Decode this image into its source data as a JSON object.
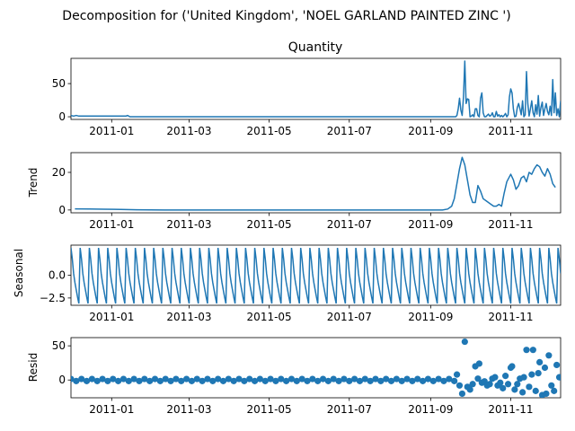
{
  "chart_data": {
    "type": "line",
    "title": "Decomposition for ('United Kingdom', 'NOEL GARLAND PAINTED ZINC ')",
    "x_range": [
      "2010-12-01",
      "2011-12-09"
    ],
    "x_ticks": [
      "2011-01",
      "2011-03",
      "2011-05",
      "2011-07",
      "2011-09",
      "2011-11"
    ],
    "line_color": "#1f77b4",
    "panels": [
      {
        "key": "observed",
        "type": "line",
        "subtitle": "Quantity",
        "ylabel": "",
        "ylim": [
          -4,
          88
        ],
        "yticks": [
          0,
          50
        ],
        "x": [
          "2010-12-01",
          "2010-12-03",
          "2010-12-05",
          "2010-12-07",
          "2010-12-09",
          "2011-01-12",
          "2011-01-13",
          "2011-01-15",
          "2011-09-20",
          "2011-09-21",
          "2011-09-22",
          "2011-09-23",
          "2011-09-24",
          "2011-09-25",
          "2011-09-26",
          "2011-09-27",
          "2011-09-28",
          "2011-09-29",
          "2011-09-30",
          "2011-10-01",
          "2011-10-02",
          "2011-10-03",
          "2011-10-04",
          "2011-10-05",
          "2011-10-06",
          "2011-10-07",
          "2011-10-08",
          "2011-10-09",
          "2011-10-10",
          "2011-10-11",
          "2011-10-12",
          "2011-10-13",
          "2011-10-14",
          "2011-10-15",
          "2011-10-16",
          "2011-10-17",
          "2011-10-18",
          "2011-10-19",
          "2011-10-20",
          "2011-10-21",
          "2011-10-22",
          "2011-10-23",
          "2011-10-24",
          "2011-10-25",
          "2011-10-26",
          "2011-10-27",
          "2011-10-28",
          "2011-10-29",
          "2011-10-30",
          "2011-10-31",
          "2011-11-01",
          "2011-11-02",
          "2011-11-03",
          "2011-11-04",
          "2011-11-05",
          "2011-11-06",
          "2011-11-07",
          "2011-11-08",
          "2011-11-09",
          "2011-11-10",
          "2011-11-11",
          "2011-11-12",
          "2011-11-13",
          "2011-11-14",
          "2011-11-15",
          "2011-11-16",
          "2011-11-17",
          "2011-11-18",
          "2011-11-19",
          "2011-11-20",
          "2011-11-21",
          "2011-11-22",
          "2011-11-23",
          "2011-11-24",
          "2011-11-25",
          "2011-11-26",
          "2011-11-27",
          "2011-11-28",
          "2011-11-29",
          "2011-11-30",
          "2011-12-01",
          "2011-12-02",
          "2011-12-03",
          "2011-12-04",
          "2011-12-05",
          "2011-12-06",
          "2011-12-07",
          "2011-12-08",
          "2011-12-09"
        ],
        "y": [
          2,
          1,
          2,
          1,
          1,
          1,
          2,
          0,
          0,
          2,
          12,
          28,
          10,
          2,
          30,
          84,
          20,
          27,
          26,
          0,
          1,
          3,
          0,
          12,
          12,
          2,
          0,
          28,
          36,
          6,
          0,
          0,
          2,
          4,
          1,
          2,
          6,
          0,
          0,
          8,
          1,
          3,
          0,
          2,
          0,
          2,
          5,
          0,
          3,
          30,
          42,
          36,
          12,
          0,
          1,
          14,
          20,
          12,
          3,
          24,
          0,
          3,
          68,
          20,
          1,
          12,
          24,
          6,
          0,
          18,
          4,
          32,
          1,
          14,
          22,
          2,
          12,
          20,
          8,
          3,
          16,
          2,
          56,
          6,
          36,
          2,
          12,
          0,
          24
        ]
      },
      {
        "key": "trend",
        "type": "line",
        "subtitle": "",
        "ylabel": "Trend",
        "ylim": [
          -1.5,
          30.5
        ],
        "yticks": [
          0,
          20
        ],
        "x": [
          "2010-12-04",
          "2010-12-15",
          "2010-12-26",
          "2011-01-08",
          "2011-01-20",
          "2011-02-10",
          "2011-09-10",
          "2011-09-14",
          "2011-09-17",
          "2011-09-19",
          "2011-09-21",
          "2011-09-23",
          "2011-09-25",
          "2011-09-27",
          "2011-09-29",
          "2011-10-01",
          "2011-10-03",
          "2011-10-05",
          "2011-10-07",
          "2011-10-09",
          "2011-10-11",
          "2011-10-13",
          "2011-10-15",
          "2011-10-17",
          "2011-10-19",
          "2011-10-21",
          "2011-10-23",
          "2011-10-25",
          "2011-10-27",
          "2011-10-29",
          "2011-11-01",
          "2011-11-03",
          "2011-11-05",
          "2011-11-07",
          "2011-11-09",
          "2011-11-11",
          "2011-11-13",
          "2011-11-15",
          "2011-11-17",
          "2011-11-19",
          "2011-11-21",
          "2011-11-23",
          "2011-11-25",
          "2011-11-27",
          "2011-11-29",
          "2011-12-01",
          "2011-12-03",
          "2011-12-05"
        ],
        "y": [
          0.6,
          0.5,
          0.4,
          0.3,
          0.1,
          0,
          0,
          0.5,
          2,
          6,
          14,
          22,
          28,
          24,
          16,
          8,
          4,
          4,
          13,
          10,
          6,
          5,
          4,
          3,
          2,
          2,
          3,
          2,
          9,
          15,
          19,
          16,
          11,
          13,
          17,
          18,
          15,
          20,
          19,
          22,
          24,
          23,
          20,
          18,
          22,
          19,
          14,
          12
        ]
      },
      {
        "key": "seasonal",
        "type": "line",
        "subtitle": "",
        "ylabel": "Seasonal",
        "ylim": [
          -3.3,
          3.3
        ],
        "yticks": [
          0.0,
          -2.5
        ],
        "ytick_labels": [
          "0.0",
          "−2.5"
        ],
        "period_days": 7,
        "start": "2010-12-01",
        "end": "2011-12-09",
        "weekly_pattern": [
          3.0,
          1.8,
          0.2,
          -0.8,
          -1.6,
          -2.4,
          -3.1
        ]
      },
      {
        "key": "resid",
        "type": "scatter",
        "subtitle": "",
        "ylabel": "Resid",
        "ylim": [
          -26,
          62
        ],
        "yticks": [
          0,
          50
        ],
        "x": [
          "2011-09-21",
          "2011-09-23",
          "2011-09-25",
          "2011-09-27",
          "2011-09-29",
          "2011-10-01",
          "2011-10-03",
          "2011-10-05",
          "2011-10-07",
          "2011-10-08",
          "2011-10-10",
          "2011-10-12",
          "2011-10-14",
          "2011-10-16",
          "2011-10-18",
          "2011-10-20",
          "2011-10-22",
          "2011-10-24",
          "2011-10-26",
          "2011-10-28",
          "2011-10-30",
          "2011-11-01",
          "2011-11-02",
          "2011-11-04",
          "2011-11-06",
          "2011-11-08",
          "2011-11-10",
          "2011-11-11",
          "2011-11-13",
          "2011-11-15",
          "2011-11-17",
          "2011-11-18",
          "2011-11-20",
          "2011-11-22",
          "2011-11-23",
          "2011-11-25",
          "2011-11-27",
          "2011-11-28",
          "2011-11-30",
          "2011-12-02",
          "2011-12-04",
          "2011-12-06",
          "2011-12-08"
        ],
        "y": [
          8,
          -8,
          -20,
          56,
          -10,
          -14,
          -6,
          20,
          2,
          24,
          -4,
          -2,
          -8,
          -6,
          2,
          4,
          -8,
          -4,
          -12,
          6,
          -6,
          18,
          20,
          -14,
          -6,
          2,
          -18,
          4,
          44,
          -10,
          8,
          44,
          -16,
          10,
          26,
          -22,
          18,
          -20,
          36,
          -8,
          -16,
          22,
          4
        ]
      }
    ]
  }
}
